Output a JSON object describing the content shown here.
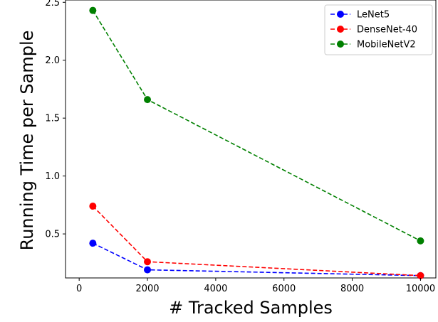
{
  "chart_data": {
    "type": "line",
    "title": "",
    "xlabel": "# Tracked Samples",
    "ylabel": "Running Time per Sample",
    "xlim": [
      -400,
      10450
    ],
    "ylim": [
      0.12,
      2.52
    ],
    "x_ticks": [
      0,
      2000,
      4000,
      6000,
      8000,
      10000
    ],
    "y_ticks": [
      0.5,
      1.0,
      1.5,
      2.0,
      2.5
    ],
    "x_tick_labels": [
      "0",
      "2000",
      "4000",
      "6000",
      "8000",
      "10000"
    ],
    "y_tick_labels": [
      "0.5",
      "1.0",
      "1.5",
      "2.0",
      "2.5"
    ],
    "grid": false,
    "legend_position": "top-right",
    "series": [
      {
        "name": "LeNet5",
        "color": "#0000ff",
        "x": [
          400,
          2000,
          10000
        ],
        "y": [
          0.42,
          0.19,
          0.14
        ]
      },
      {
        "name": "DenseNet-40",
        "color": "#ff0000",
        "x": [
          400,
          2000,
          10000
        ],
        "y": [
          0.74,
          0.26,
          0.14
        ]
      },
      {
        "name": "MobileNetV2",
        "color": "#008000",
        "x": [
          400,
          2000,
          10000
        ],
        "y": [
          2.43,
          1.66,
          0.44
        ]
      }
    ]
  }
}
